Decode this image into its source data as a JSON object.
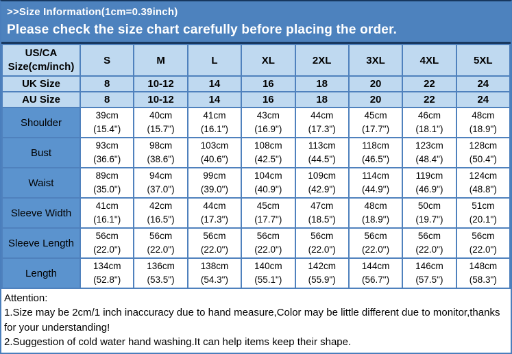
{
  "banner": {
    "line1": ">>Size Information(1cm=0.39inch)",
    "line2": "Please check the size chart carefully before placing the order."
  },
  "table": {
    "header": {
      "label": "US/CA Size(cm/inch)",
      "sizes": [
        "S",
        "M",
        "L",
        "XL",
        "2XL",
        "3XL",
        "4XL",
        "5XL"
      ]
    },
    "size_rows": [
      {
        "label": "UK Size",
        "values": [
          "8",
          "10-12",
          "14",
          "16",
          "18",
          "20",
          "22",
          "24"
        ]
      },
      {
        "label": "AU Size",
        "values": [
          "8",
          "10-12",
          "14",
          "16",
          "18",
          "20",
          "22",
          "24"
        ]
      }
    ],
    "measure_rows": [
      {
        "label": "Shoulder",
        "cells": [
          {
            "cm": "39cm",
            "inch": "(15.4\")"
          },
          {
            "cm": "40cm",
            "inch": "(15.7\")"
          },
          {
            "cm": "41cm",
            "inch": "(16.1\")"
          },
          {
            "cm": "43cm",
            "inch": "(16.9\")"
          },
          {
            "cm": "44cm",
            "inch": "(17.3\")"
          },
          {
            "cm": "45cm",
            "inch": "(17.7\")"
          },
          {
            "cm": "46cm",
            "inch": "(18.1\")"
          },
          {
            "cm": "48cm",
            "inch": "(18.9\")"
          }
        ]
      },
      {
        "label": "Bust",
        "cells": [
          {
            "cm": "93cm",
            "inch": "(36.6\")"
          },
          {
            "cm": "98cm",
            "inch": "(38.6\")"
          },
          {
            "cm": "103cm",
            "inch": "(40.6\")"
          },
          {
            "cm": "108cm",
            "inch": "(42.5\")"
          },
          {
            "cm": "113cm",
            "inch": "(44.5\")"
          },
          {
            "cm": "118cm",
            "inch": "(46.5\")"
          },
          {
            "cm": "123cm",
            "inch": "(48.4\")"
          },
          {
            "cm": "128cm",
            "inch": "(50.4\")"
          }
        ]
      },
      {
        "label": "Waist",
        "cells": [
          {
            "cm": "89cm",
            "inch": "(35.0\")"
          },
          {
            "cm": "94cm",
            "inch": "(37.0\")"
          },
          {
            "cm": "99cm",
            "inch": "(39.0\")"
          },
          {
            "cm": "104cm",
            "inch": "(40.9\")"
          },
          {
            "cm": "109cm",
            "inch": "(42.9\")"
          },
          {
            "cm": "114cm",
            "inch": "(44.9\")"
          },
          {
            "cm": "119cm",
            "inch": "(46.9\")"
          },
          {
            "cm": "124cm",
            "inch": "(48.8\")"
          }
        ]
      },
      {
        "label": "Sleeve Width",
        "cells": [
          {
            "cm": "41cm",
            "inch": "(16.1\")"
          },
          {
            "cm": "42cm",
            "inch": "(16.5\")"
          },
          {
            "cm": "44cm",
            "inch": "(17.3\")"
          },
          {
            "cm": "45cm",
            "inch": "(17.7\")"
          },
          {
            "cm": "47cm",
            "inch": "(18.5\")"
          },
          {
            "cm": "48cm",
            "inch": "(18.9\")"
          },
          {
            "cm": "50cm",
            "inch": "(19.7\")"
          },
          {
            "cm": "51cm",
            "inch": "(20.1\")"
          }
        ]
      },
      {
        "label": "Sleeve Length",
        "cells": [
          {
            "cm": "56cm",
            "inch": "(22.0\")"
          },
          {
            "cm": "56cm",
            "inch": "(22.0\")"
          },
          {
            "cm": "56cm",
            "inch": "(22.0\")"
          },
          {
            "cm": "56cm",
            "inch": "(22.0\")"
          },
          {
            "cm": "56cm",
            "inch": "(22.0\")"
          },
          {
            "cm": "56cm",
            "inch": "(22.0\")"
          },
          {
            "cm": "56cm",
            "inch": "(22.0\")"
          },
          {
            "cm": "56cm",
            "inch": "(22.0\")"
          }
        ]
      },
      {
        "label": "Length",
        "cells": [
          {
            "cm": "134cm",
            "inch": "(52.8\")"
          },
          {
            "cm": "136cm",
            "inch": "(53.5\")"
          },
          {
            "cm": "138cm",
            "inch": "(54.3\")"
          },
          {
            "cm": "140cm",
            "inch": "(55.1\")"
          },
          {
            "cm": "142cm",
            "inch": "(55.9\")"
          },
          {
            "cm": "144cm",
            "inch": "(56.7\")"
          },
          {
            "cm": "146cm",
            "inch": "(57.5\")"
          },
          {
            "cm": "148cm",
            "inch": "(58.3\")"
          }
        ]
      }
    ]
  },
  "attention": {
    "title": "Attention:",
    "notes": [
      "1.Size may be 2cm/1 inch inaccuracy due to hand measure,Color may be little different due to monitor,thanks for your understanding!",
      "2.Suggestion of cold water hand washing.It can help items keep their shape."
    ]
  },
  "colors": {
    "banner_bg": "#4d82be",
    "header_cell_bg": "#bfd9f0",
    "label_cell_bg": "#5b93ce",
    "grid_border": "#4f81bd",
    "dark_rule": "#17375e",
    "banner_text": "#ffffff",
    "body_text": "#000000"
  }
}
